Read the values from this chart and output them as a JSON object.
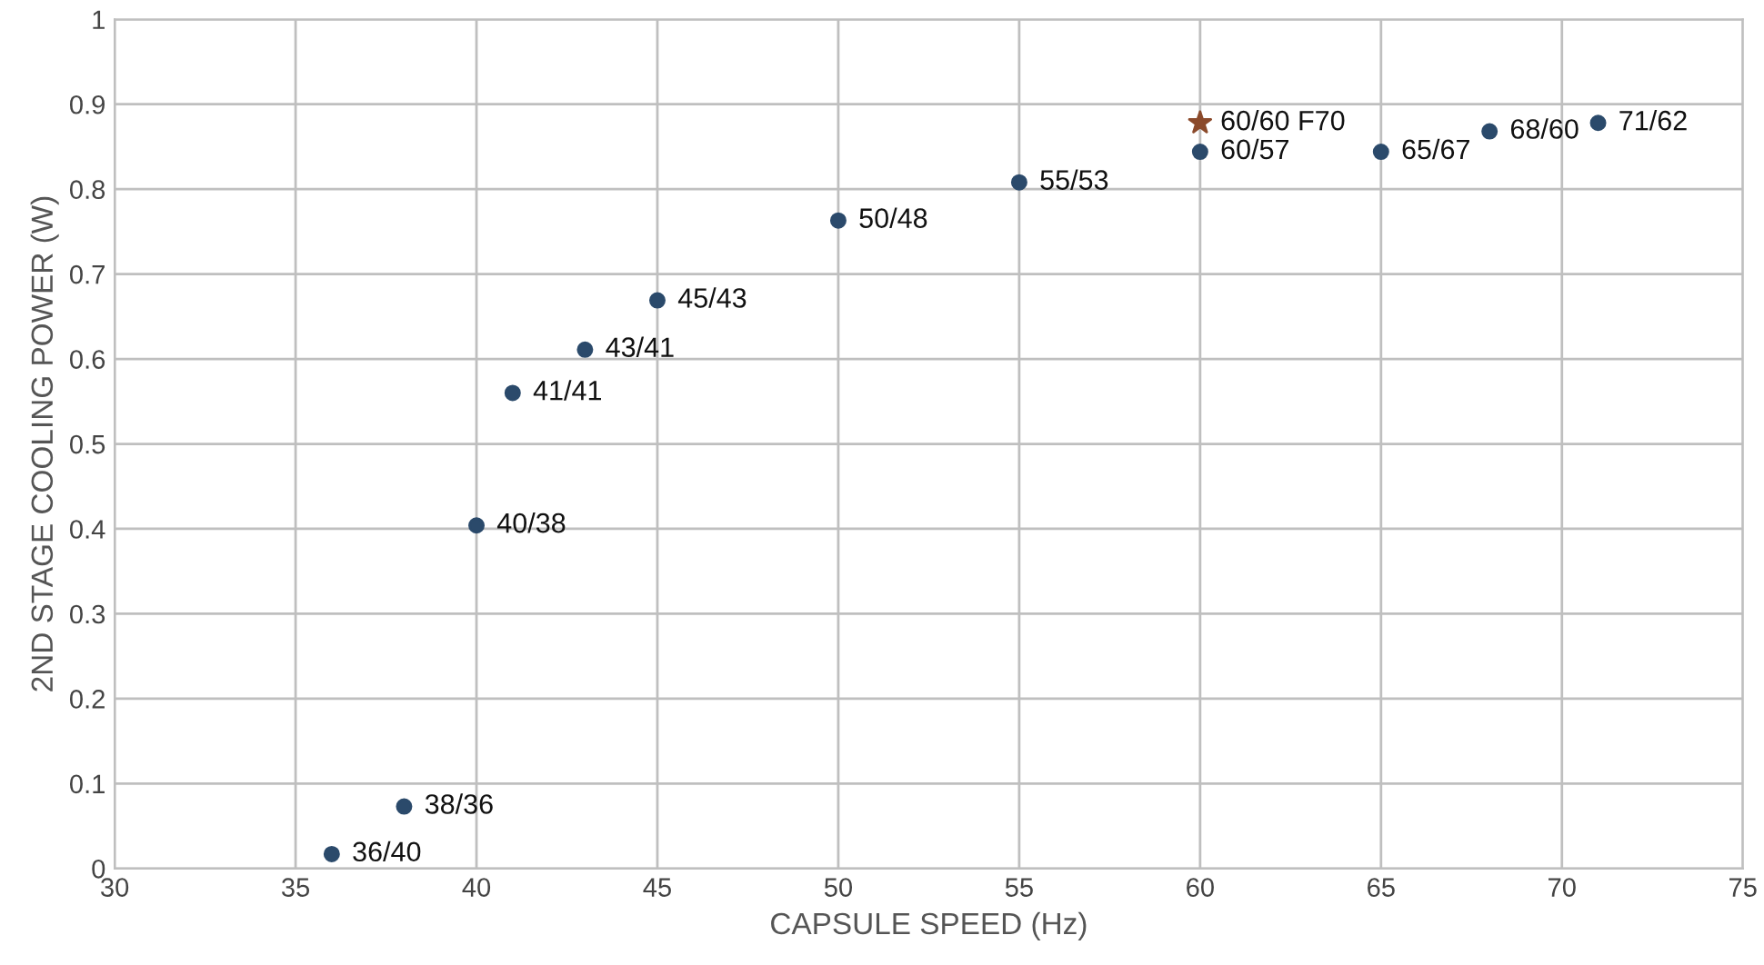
{
  "chart_data": {
    "type": "scatter",
    "xlabel": "CAPSULE SPEED (Hz)",
    "ylabel": "2ND STAGE COOLING POWER (W)",
    "series": [
      {
        "color": "#2b4a6b",
        "marker": "circle",
        "x": [
          36,
          38,
          40,
          41,
          43,
          45,
          50,
          55,
          60,
          65,
          68,
          71
        ],
        "values": [
          0.017,
          0.073,
          0.404,
          0.56,
          0.611,
          0.669,
          0.763,
          0.808,
          0.844,
          0.844,
          0.868,
          0.878
        ]
      },
      {
        "color": "#8b4a2b",
        "marker": "star",
        "x": [
          60
        ],
        "values": [
          0.878
        ]
      }
    ],
    "annotations": [
      {
        "text": "36/40",
        "x": 36,
        "y": 0.017
      },
      {
        "text": "38/36",
        "x": 38,
        "y": 0.073
      },
      {
        "text": "40/38",
        "x": 40,
        "y": 0.404
      },
      {
        "text": "41/41",
        "x": 41,
        "y": 0.56
      },
      {
        "text": "43/41",
        "x": 43,
        "y": 0.611
      },
      {
        "text": "45/43",
        "x": 45,
        "y": 0.669
      },
      {
        "text": "50/48",
        "x": 50,
        "y": 0.763
      },
      {
        "text": "55/53",
        "x": 55,
        "y": 0.808
      },
      {
        "text": "60/57",
        "x": 60,
        "y": 0.844
      },
      {
        "text": "65/67",
        "x": 65,
        "y": 0.844
      },
      {
        "text": "68/60",
        "x": 68,
        "y": 0.868
      },
      {
        "text": "71/62",
        "x": 71,
        "y": 0.878
      },
      {
        "text": "60/60 F70",
        "x": 60,
        "y": 0.878
      }
    ],
    "xlim": [
      30,
      75
    ],
    "xticks": [
      30,
      35,
      40,
      45,
      50,
      55,
      60,
      65,
      70,
      75
    ],
    "ylim": [
      0,
      1
    ],
    "yticks": [
      0,
      0.1,
      0.2,
      0.3,
      0.4,
      0.5,
      0.6,
      0.7,
      0.8,
      0.9,
      1
    ],
    "grid": true
  }
}
